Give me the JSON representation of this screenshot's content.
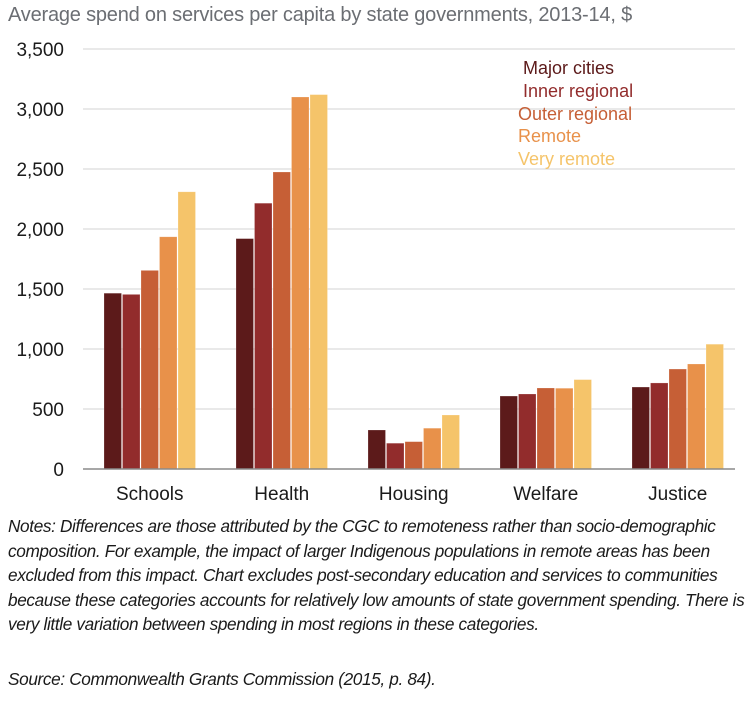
{
  "chart_data": {
    "type": "bar",
    "title": "Average spend on services per capita by state governments, 2013-14, $",
    "xlabel": "",
    "ylabel": "",
    "ylim": [
      0,
      3500
    ],
    "yticks": [
      0,
      500,
      1000,
      1500,
      2000,
      2500,
      3000,
      3500
    ],
    "ytick_labels": [
      "0",
      "500",
      "1,000",
      "1,500",
      "2,000",
      "2,500",
      "3,000",
      "3,500"
    ],
    "grid": true,
    "legend_position": "top-right",
    "categories": [
      "Schools",
      "Health",
      "Housing",
      "Welfare",
      "Justice"
    ],
    "series": [
      {
        "name": "Major cities",
        "color": "#5c1a1a",
        "values": [
          1465,
          1920,
          325,
          608,
          683
        ]
      },
      {
        "name": "Inner regional",
        "color": "#922c2c",
        "values": [
          1455,
          2215,
          215,
          625,
          717
        ]
      },
      {
        "name": "Outer regional",
        "color": "#c65f36",
        "values": [
          1655,
          2475,
          228,
          675,
          833
        ]
      },
      {
        "name": "Remote",
        "color": "#e8914a",
        "values": [
          1935,
          3100,
          340,
          673,
          875
        ]
      },
      {
        "name": "Very remote",
        "color": "#f5c46a",
        "values": [
          2310,
          3120,
          450,
          745,
          1040
        ]
      }
    ]
  },
  "notes": "Notes: Differences are those attributed by the CGC to remoteness rather than socio-demographic composition. For example, the impact of larger Indigenous populations in remote areas has been excluded from this impact. Chart excludes post-secondary education and services to communities because these categories accounts for relatively low amounts of state government spending. There is very little variation between spending in most regions in these categories.",
  "source": "Source: Commonwealth Grants Commission (2015, p. 84)."
}
